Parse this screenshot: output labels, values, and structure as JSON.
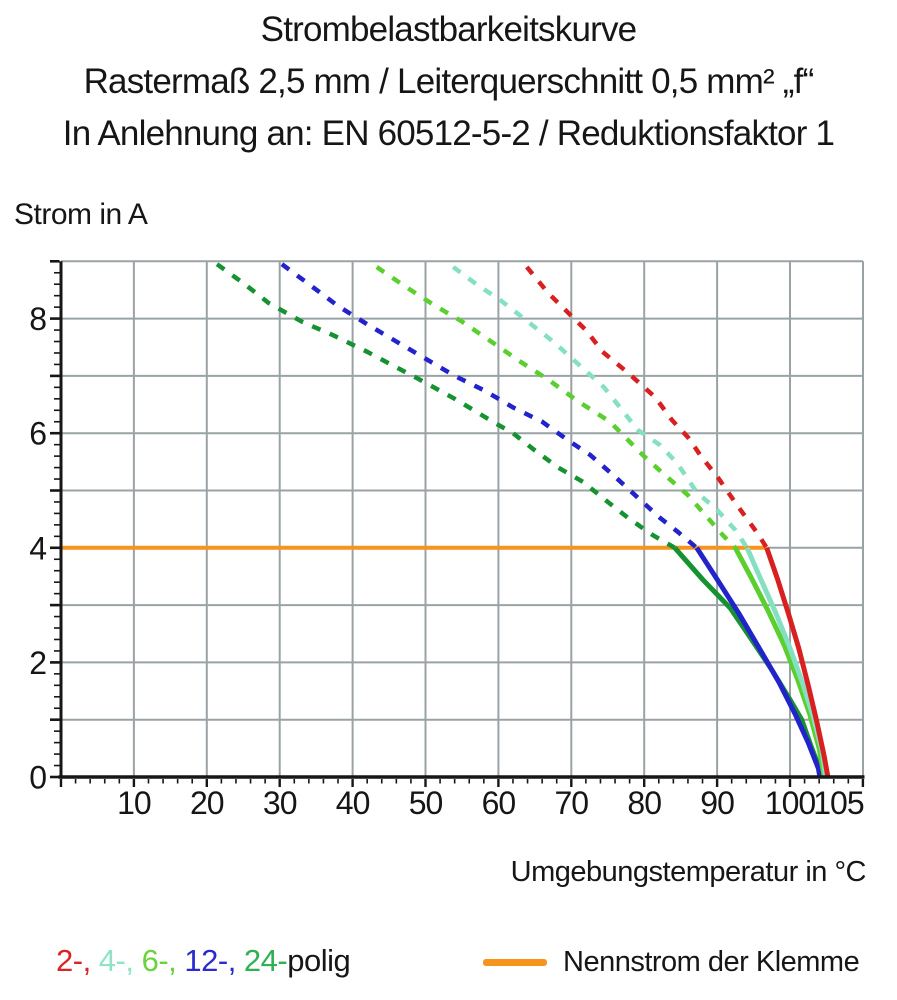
{
  "title": {
    "line1": "Strombelastbarkeitskurve",
    "line2": "Rastermaß 2,5 mm / Leiterquerschnitt 0,5 mm² „f“",
    "line3": "In Anlehnung an: EN 60512-5-2 / Reduktionsfaktor 1"
  },
  "chart_data": {
    "type": "line",
    "ylabel": "Strom in A",
    "xlabel": "Umgebungstemperatur in °C",
    "xlim": [
      0,
      110
    ],
    "ylim": [
      0,
      9
    ],
    "x_ticks": [
      10,
      20,
      30,
      40,
      50,
      60,
      70,
      80,
      90,
      100,
      105
    ],
    "y_ticks": [
      0,
      2,
      4,
      6,
      8
    ],
    "x_minor_step": 2,
    "y_minor_step": 0.2,
    "grid": {
      "x_step": 10,
      "y_step": 1,
      "color": "#99a3a6",
      "on": true
    },
    "axis_color": "#161616",
    "legend_position": "bottom",
    "nennstrom": {
      "value": 4,
      "x_start": 0,
      "x_end": 96.8,
      "color": "#f6941d"
    },
    "series": [
      {
        "name": "24-polig",
        "poles": 24,
        "color": "#169231",
        "dashed": [
          [
            21.4,
            8.95
          ],
          [
            25,
            8.62
          ],
          [
            28.5,
            8.27
          ],
          [
            33,
            7.95
          ],
          [
            37.5,
            7.7
          ],
          [
            42,
            7.42
          ],
          [
            46,
            7.15
          ],
          [
            49,
            6.95
          ],
          [
            54,
            6.6
          ],
          [
            59.5,
            6.18
          ],
          [
            62,
            6.0
          ],
          [
            65,
            5.7
          ],
          [
            68.2,
            5.4
          ],
          [
            71.6,
            5.15
          ],
          [
            74.8,
            4.82
          ],
          [
            77.8,
            4.52
          ],
          [
            81.2,
            4.22
          ],
          [
            84.2,
            4.0
          ]
        ],
        "solid": [
          [
            84.2,
            4.0
          ],
          [
            88,
            3.45
          ],
          [
            91.8,
            2.95
          ],
          [
            95,
            2.35
          ],
          [
            97.5,
            1.87
          ],
          [
            100,
            1.35
          ],
          [
            101.6,
            1.0
          ],
          [
            103,
            0.5
          ],
          [
            104.3,
            0.08
          ],
          [
            104.4,
            0
          ]
        ]
      },
      {
        "name": "12-polig",
        "poles": 12,
        "color": "#2323cc",
        "dashed": [
          [
            30.3,
            8.95
          ],
          [
            34,
            8.6
          ],
          [
            38,
            8.22
          ],
          [
            42,
            7.9
          ],
          [
            46,
            7.6
          ],
          [
            50,
            7.3
          ],
          [
            54,
            7.0
          ],
          [
            58,
            6.75
          ],
          [
            62,
            6.45
          ],
          [
            66,
            6.2
          ],
          [
            69.5,
            5.88
          ],
          [
            72.6,
            5.62
          ],
          [
            76,
            5.24
          ],
          [
            79,
            4.89
          ],
          [
            82.2,
            4.52
          ],
          [
            84.6,
            4.28
          ],
          [
            87.2,
            4.0
          ]
        ],
        "solid": [
          [
            87.2,
            4.0
          ],
          [
            90,
            3.45
          ],
          [
            93,
            2.85
          ],
          [
            96,
            2.2
          ],
          [
            98.5,
            1.65
          ],
          [
            100.7,
            1.1
          ],
          [
            102.5,
            0.6
          ],
          [
            103.9,
            0.15
          ],
          [
            104.1,
            0
          ]
        ]
      },
      {
        "name": "6-polig",
        "poles": 6,
        "color": "#5ccf30",
        "dashed": [
          [
            43.3,
            8.9
          ],
          [
            47,
            8.58
          ],
          [
            51,
            8.25
          ],
          [
            55,
            7.95
          ],
          [
            59,
            7.6
          ],
          [
            63,
            7.25
          ],
          [
            67,
            6.92
          ],
          [
            71,
            6.55
          ],
          [
            75.3,
            6.2
          ],
          [
            79.8,
            5.62
          ],
          [
            82.4,
            5.32
          ],
          [
            86,
            4.92
          ],
          [
            88.6,
            4.54
          ],
          [
            90.8,
            4.22
          ],
          [
            92.5,
            4.0
          ]
        ],
        "solid": [
          [
            92.5,
            4.0
          ],
          [
            94.8,
            3.45
          ],
          [
            97,
            2.9
          ],
          [
            99.2,
            2.3
          ],
          [
            101,
            1.72
          ],
          [
            102.7,
            1.1
          ],
          [
            104,
            0.5
          ],
          [
            104.7,
            0
          ]
        ]
      },
      {
        "name": "4-polig",
        "poles": 4,
        "color": "#85e0c2",
        "dashed": [
          [
            53.8,
            8.9
          ],
          [
            57,
            8.6
          ],
          [
            60.5,
            8.3
          ],
          [
            64,
            7.95
          ],
          [
            67.5,
            7.6
          ],
          [
            71,
            7.2
          ],
          [
            74.5,
            6.8
          ],
          [
            77,
            6.4
          ],
          [
            79.1,
            6.06
          ],
          [
            82.2,
            5.79
          ],
          [
            84.5,
            5.48
          ],
          [
            87.2,
            4.97
          ],
          [
            90,
            4.66
          ],
          [
            92.5,
            4.31
          ],
          [
            94.1,
            4.0
          ]
        ],
        "solid": [
          [
            94.1,
            4.0
          ],
          [
            96,
            3.45
          ],
          [
            98,
            2.88
          ],
          [
            100,
            2.25
          ],
          [
            101.7,
            1.65
          ],
          [
            103.2,
            1.05
          ],
          [
            104.4,
            0.45
          ],
          [
            104.9,
            0
          ]
        ]
      },
      {
        "name": "2-polig",
        "poles": 2,
        "color": "#d92020",
        "dashed": [
          [
            63.9,
            8.9
          ],
          [
            66.8,
            8.45
          ],
          [
            69.5,
            8.11
          ],
          [
            72,
            7.8
          ],
          [
            74.3,
            7.42
          ],
          [
            77.8,
            7.05
          ],
          [
            81.5,
            6.63
          ],
          [
            83.8,
            6.23
          ],
          [
            86,
            5.93
          ],
          [
            87.9,
            5.58
          ],
          [
            90.1,
            5.23
          ],
          [
            92.7,
            4.75
          ],
          [
            95.5,
            4.26
          ],
          [
            96.8,
            4.0
          ]
        ],
        "solid": [
          [
            96.8,
            4.0
          ],
          [
            98.3,
            3.45
          ],
          [
            99.8,
            2.85
          ],
          [
            101.2,
            2.25
          ],
          [
            102.5,
            1.6
          ],
          [
            103.7,
            0.95
          ],
          [
            104.7,
            0.35
          ],
          [
            105.2,
            0
          ]
        ]
      }
    ]
  },
  "legend": {
    "poles": [
      {
        "label": "2-",
        "color": "#dc2323"
      },
      {
        "label": "4-",
        "color": "#8fe3c7"
      },
      {
        "label": "6-",
        "color": "#6ad23b"
      },
      {
        "label": "12-",
        "color": "#2a2ad0"
      },
      {
        "label": "24-",
        "color": "#2eb054"
      }
    ],
    "suffix": "polig",
    "suffix_color": "#161616",
    "separator": ", ",
    "nennstrom_label": "Nennstrom der Klemme"
  }
}
